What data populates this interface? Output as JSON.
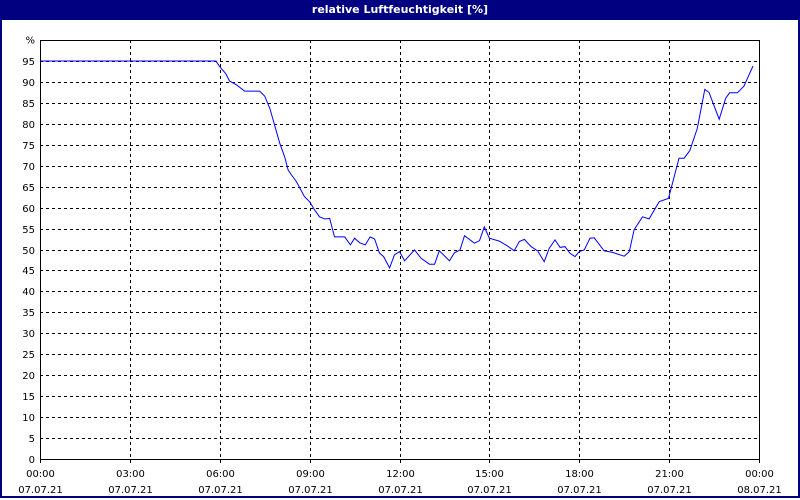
{
  "window": {
    "title": "relative Luftfeuchtigkeit [%]"
  },
  "colors": {
    "title_bar": "#000080",
    "line": "#0000ff",
    "grid": "#000000",
    "background": "#ffffff"
  },
  "chart_data": {
    "type": "line",
    "title": "relative Luftfeuchtigkeit [%]",
    "ylabel": "%",
    "ylim": [
      0,
      100
    ],
    "xlim_hours": [
      0,
      24
    ],
    "grid": true,
    "y_ticks": [
      "0",
      "5",
      "10",
      "15",
      "20",
      "25",
      "30",
      "35",
      "40",
      "45",
      "50",
      "55",
      "60",
      "65",
      "70",
      "75",
      "80",
      "85",
      "90",
      "95"
    ],
    "y_unit_label": "%",
    "x_ticks": [
      {
        "time": "00:00",
        "date": "07.07.21"
      },
      {
        "time": "03:00",
        "date": "07.07.21"
      },
      {
        "time": "06:00",
        "date": "07.07.21"
      },
      {
        "time": "09:00",
        "date": "07.07.21"
      },
      {
        "time": "12:00",
        "date": "07.07.21"
      },
      {
        "time": "15:00",
        "date": "07.07.21"
      },
      {
        "time": "18:00",
        "date": "07.07.21"
      },
      {
        "time": "21:00",
        "date": "07.07.21"
      },
      {
        "time": "00:00",
        "date": "08.07.21"
      }
    ],
    "series": [
      {
        "x_hours": [
          0,
          5.87,
          6.0,
          6.2,
          6.33,
          6.56,
          6.83,
          7.33,
          7.5,
          7.67,
          7.83,
          8.0,
          8.17,
          8.28,
          8.39,
          8.56,
          8.83,
          9.0,
          9.17,
          9.33,
          9.5,
          9.67,
          9.83,
          10.17,
          10.36,
          10.5,
          10.67,
          10.86,
          11.02,
          11.17,
          11.33,
          11.47,
          11.67,
          11.83,
          12.0,
          12.17,
          12.5,
          12.72,
          13.0,
          13.17,
          13.33,
          13.67,
          13.83,
          14.02,
          14.17,
          14.5,
          14.67,
          14.83,
          15.0,
          15.33,
          15.61,
          15.83,
          16.0,
          16.17,
          16.39,
          16.61,
          16.83,
          17.0,
          17.19,
          17.36,
          17.52,
          17.69,
          17.86,
          18.0,
          18.17,
          18.36,
          18.5,
          18.83,
          19.11,
          19.5,
          19.67,
          19.83,
          20.11,
          20.33,
          20.67,
          20.98,
          21.33,
          21.5,
          21.69,
          21.94,
          22.19,
          22.33,
          22.67,
          22.89,
          23.02,
          23.28,
          23.5,
          23.8
        ],
        "values": [
          95,
          95,
          93.6,
          92,
          90.2,
          89.3,
          87.8,
          87.8,
          86.6,
          83.7,
          79.7,
          75.4,
          72,
          69,
          67.8,
          66.2,
          62.6,
          61.4,
          59.4,
          57.8,
          57.3,
          57.4,
          53,
          53,
          51.1,
          52.7,
          51.6,
          51.1,
          53,
          52.5,
          49.2,
          48.3,
          45.6,
          48.7,
          49.5,
          47.3,
          49.9,
          47.9,
          46.5,
          46.5,
          49.7,
          47.3,
          49.2,
          49.9,
          53.3,
          51.5,
          52.1,
          55.4,
          52.7,
          52,
          50.8,
          49.7,
          51.9,
          52.4,
          50.7,
          49.7,
          47.1,
          50.3,
          52.3,
          50.5,
          50.7,
          49.1,
          48.3,
          49.5,
          49.9,
          52.7,
          52.8,
          49.7,
          49.3,
          48.4,
          49.5,
          54.7,
          57.8,
          57.3,
          61.4,
          62.2,
          71.8,
          71.8,
          73.6,
          78.9,
          88.2,
          87.5,
          81.1,
          86.1,
          87.4,
          87.4,
          89,
          93.8
        ]
      }
    ]
  }
}
